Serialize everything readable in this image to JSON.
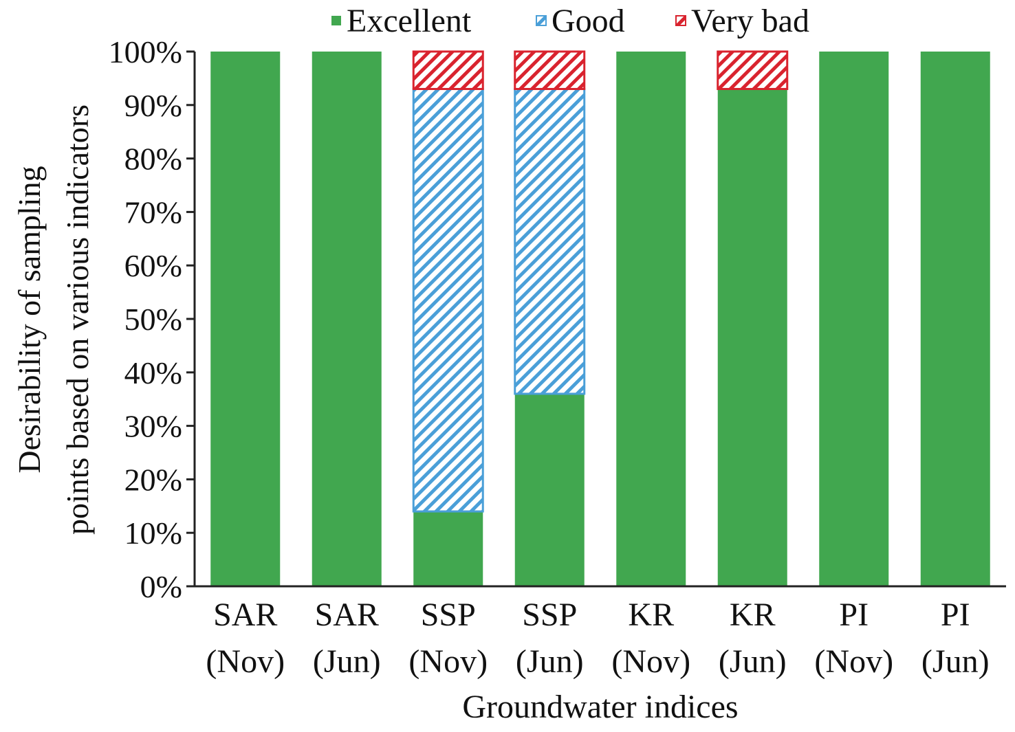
{
  "chart_data": {
    "type": "bar",
    "stacked": true,
    "categories": [
      [
        "SAR",
        "(Nov)"
      ],
      [
        "SAR",
        "(Jun)"
      ],
      [
        "SSP",
        "(Nov)"
      ],
      [
        "SSP",
        "(Jun)"
      ],
      [
        "KR",
        "(Nov)"
      ],
      [
        "KR",
        "(Jun)"
      ],
      [
        "PI",
        "(Nov)"
      ],
      [
        "PI",
        "(Jun)"
      ]
    ],
    "series": [
      {
        "name": "Excellent",
        "color": "#41a74f",
        "pattern": "solid",
        "values": [
          100,
          100,
          14,
          36,
          100,
          93,
          100,
          100
        ]
      },
      {
        "name": "Good",
        "color": "#4a9fd8",
        "pattern": "hatch",
        "values": [
          0,
          0,
          79,
          57,
          0,
          0,
          0,
          0
        ]
      },
      {
        "name": "Very bad",
        "color": "#d9232e",
        "pattern": "hatch",
        "values": [
          0,
          0,
          7,
          7,
          0,
          7,
          0,
          0
        ]
      }
    ],
    "xlabel": "Groundwater indices",
    "ylabel": [
      "Desirability of sampling",
      "points based on various indicators"
    ],
    "ylim": [
      0,
      100
    ],
    "yticks": [
      "0%",
      "10%",
      "20%",
      "30%",
      "40%",
      "50%",
      "60%",
      "70%",
      "80%",
      "90%",
      "100%"
    ],
    "legend_position": "top",
    "grid": false
  }
}
